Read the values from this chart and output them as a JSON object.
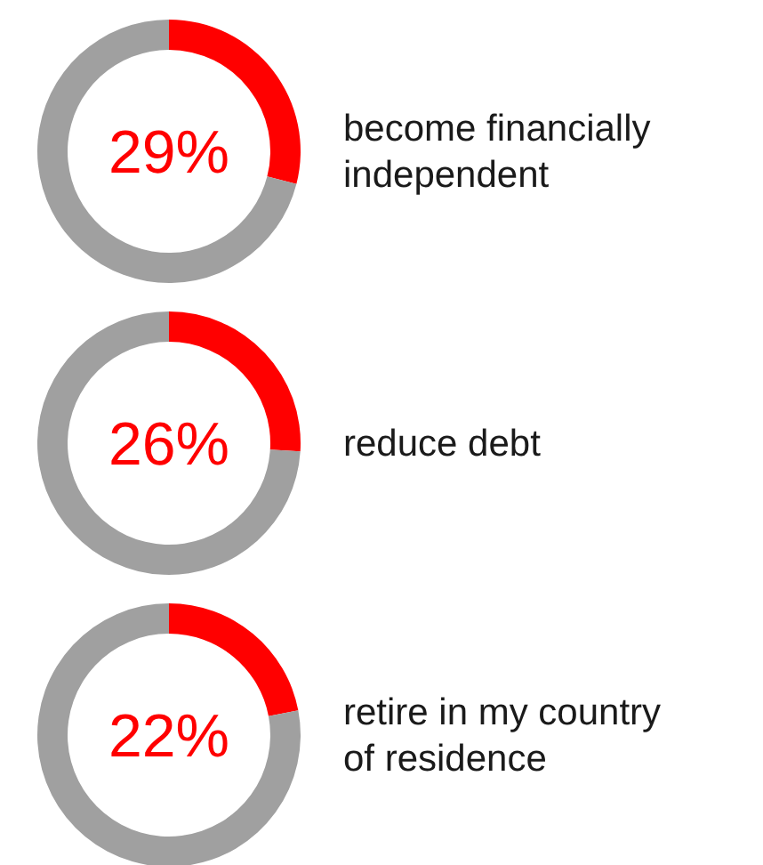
{
  "chart_data": [
    {
      "type": "donut",
      "title": "become financially independent",
      "categories": [
        null,
        null
      ],
      "values": [
        29,
        71
      ],
      "colors": [
        "#ff0000",
        "#a0a0a0"
      ],
      "annotations": [
        "29%"
      ]
    },
    {
      "type": "donut",
      "title": "reduce debt",
      "categories": [
        null,
        null
      ],
      "values": [
        26,
        74
      ],
      "colors": [
        "#ff0000",
        "#a0a0a0"
      ],
      "annotations": [
        "26%"
      ]
    },
    {
      "type": "donut",
      "title": "retire in my country of residence",
      "categories": [
        null,
        null
      ],
      "values": [
        22,
        78
      ],
      "colors": [
        "#ff0000",
        "#a0a0a0"
      ],
      "annotations": [
        "22%"
      ]
    }
  ]
}
